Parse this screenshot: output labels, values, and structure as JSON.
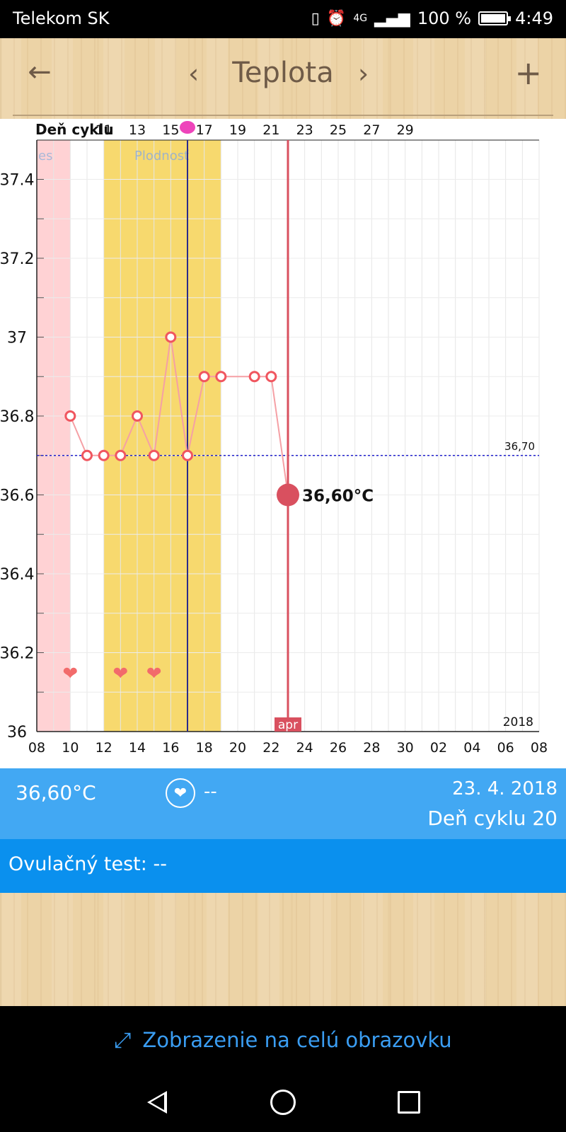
{
  "status_bar": {
    "carrier": "Telekom SK",
    "network": "4G",
    "battery": "100 %",
    "time": "4:49"
  },
  "header": {
    "title": "Teplota"
  },
  "chart_data": {
    "type": "line",
    "title": "Teplota",
    "cycle_axis_label": "Deň cyklu",
    "cycle_day_labels": [
      "11",
      "13",
      "15",
      "17",
      "19",
      "21",
      "23",
      "25",
      "27",
      "29"
    ],
    "date_tick_labels": [
      "08",
      "10",
      "12",
      "14",
      "16",
      "18",
      "20",
      "22",
      "24",
      "26",
      "28",
      "30",
      "02",
      "04",
      "06",
      "08"
    ],
    "y_tick_labels": [
      "37.4",
      "37.2",
      "37",
      "36.8",
      "36.6",
      "36.4",
      "36.2",
      "36"
    ],
    "ylim": [
      36,
      37.5
    ],
    "x_dates": [
      10,
      11,
      12,
      13,
      14,
      15,
      16,
      17,
      18,
      19,
      21,
      22,
      23
    ],
    "series": [
      {
        "name": "Teplota",
        "values": [
          36.8,
          36.7,
          36.7,
          36.7,
          36.8,
          36.7,
          37.0,
          36.7,
          36.9,
          36.9,
          36.9,
          36.9,
          36.6
        ]
      }
    ],
    "coverline_value": 36.7,
    "coverline_label": "36,70",
    "period_label": "es",
    "fertile_label": "Plodnosť",
    "fertile_window_dates": [
      12,
      19
    ],
    "period_end_date": 10,
    "ovulation_date": 17,
    "selected_date": 23,
    "selected_value": 36.6,
    "selected_label": "36,60°C",
    "month_label": "apr",
    "year_label": "2018",
    "intercourse_dates": [
      10,
      13,
      15
    ]
  },
  "info": {
    "temperature": "36,60°C",
    "intercourse": "--",
    "date": "23. 4. 2018",
    "cycle_day": "Deň cyklu 20"
  },
  "ovulation_test": {
    "label": "Ovulačný test:",
    "value": "--"
  },
  "fullscreen": {
    "label": "Zobrazenie na celú obrazovku"
  },
  "icons": {
    "back": "arrow-left-icon",
    "add": "plus-icon",
    "fullscreen": "fullscreen-icon",
    "heart": "heart-icon"
  },
  "colors": {
    "accent": "#42a8f3",
    "accent_dark": "#0a90ee",
    "fertile": "#f7d96e",
    "period": "#ffd2d4",
    "line": "#f5a0a5",
    "selected": "#d9505f",
    "ovulation": "#2b2b8c"
  }
}
